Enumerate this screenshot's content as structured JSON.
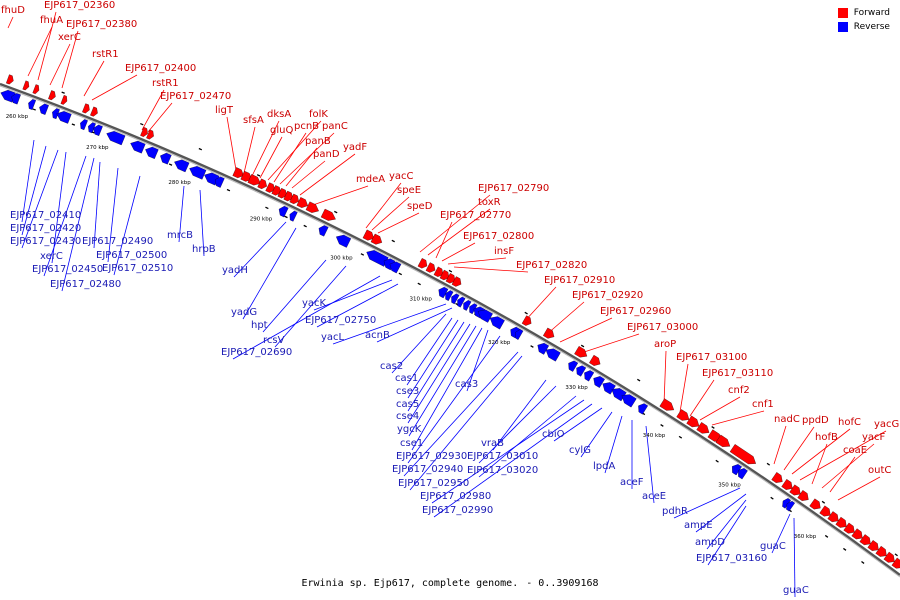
{
  "legend": {
    "forward_label": "Forward",
    "reverse_label": "Reverse",
    "forward_color": "#ff0000",
    "reverse_color": "#0000ff"
  },
  "caption": {
    "organism": "Erwinia sp. Ejp617, complete genome.",
    "range": "- 0..3909168"
  },
  "colors": {
    "forward": "#ff0000",
    "reverse": "#0000ff",
    "backbone": "#555555",
    "label_forward": "#cc0000",
    "label_reverse": "#1a1ab4"
  },
  "chart_data": {
    "type": "genome-map",
    "kbp_ticks": [
      "260 kbp",
      "270 kbp",
      "280 kbp",
      "290 kbp",
      "300 kbp",
      "310 kbp",
      "320 kbp",
      "330 kbp",
      "340 kbp",
      "350 kbp",
      "360 kbp"
    ],
    "forward_genes": [
      "fhuD",
      "fhuA",
      "EJP617_02360",
      "xerC",
      "EJP617_02380",
      "rstR1",
      "EJP617_02400",
      "rstR1",
      "EJP617_02470",
      "ligT",
      "sfsA",
      "dksA",
      "gluQ",
      "folK",
      "pcnB",
      "panC",
      "panB",
      "panD",
      "yadF",
      "mdeA",
      "yacC",
      "speE",
      "speD",
      "EJP617_02790",
      "toxR",
      "EJP617_02770",
      "EJP617_02800",
      "insF",
      "EJP617_02820",
      "EJP617_02910",
      "EJP617_02920",
      "EJP617_02960",
      "EJP617_03000",
      "aroP",
      "EJP617_03100",
      "EJP617_03110",
      "cnf2",
      "cnf1",
      "nadC",
      "ppdD",
      "hofC",
      "yacG",
      "hofB",
      "yacF",
      "coaE",
      "outC"
    ],
    "reverse_genes": [
      "EJP617_02410",
      "EJP617_02420",
      "EJP617_02430",
      "xerC",
      "EJP617_02450",
      "EJP617_02480",
      "EJP617_02490",
      "EJP617_02500",
      "EJP617_02510",
      "mrcB",
      "hrpB",
      "yadH",
      "yadG",
      "hpt",
      "rcsV",
      "EJP617_02690",
      "yacK",
      "EJP617_02750",
      "yacL",
      "acnB",
      "cas2",
      "cas1",
      "cse3",
      "cas5",
      "cse4",
      "ygcK",
      "cse1",
      "cas3",
      "EJP617_02930",
      "EJP617_02940",
      "EJP617_02950",
      "vraB",
      "EJP617_03010",
      "EJP617_03020",
      "EJP617_02980",
      "EJP617_02990",
      "cbiO",
      "cylG",
      "lpdA",
      "aceF",
      "aceE",
      "pdhR",
      "ampE",
      "ampD",
      "EJP617_03160",
      "guaC",
      "guaC"
    ]
  }
}
